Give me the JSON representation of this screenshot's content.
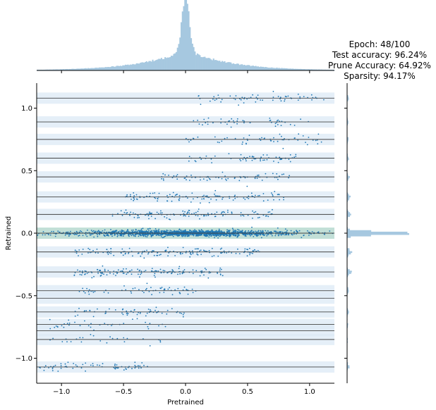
{
  "annotation": {
    "epoch": "Epoch: 48/100",
    "test_accuracy": "Test accuracy: 96.24%",
    "prune_accuracy": "Prune Accuracy: 64.92%",
    "sparsity": "Sparsity: 94.17%"
  },
  "colors": {
    "points": "#1f77b4",
    "hist": "#a6c8e0",
    "band": "#dce9f5",
    "zero_band": "#b7d9d0",
    "line": "#444444"
  },
  "chart_data": {
    "type": "scatter",
    "xlabel": "Pretrained",
    "ylabel": "Retrained",
    "xlim": [
      -1.2,
      1.2
    ],
    "ylim": [
      -1.2,
      1.2
    ],
    "x_ticks": [
      -1.0,
      -0.5,
      0.0,
      0.5,
      1.0
    ],
    "x_tick_labels": [
      "−1.0",
      "−0.5",
      "0.0",
      "0.5",
      "1.0"
    ],
    "y_ticks": [
      -1.0,
      -0.5,
      0.0,
      0.5,
      1.0
    ],
    "y_tick_labels": [
      "−1.0",
      "−0.5",
      "0.0",
      "0.5",
      "1.0"
    ],
    "grid": false,
    "legend": "none",
    "quantization_levels": [
      -1.07,
      -0.85,
      -0.78,
      -0.73,
      -0.63,
      -0.52,
      -0.46,
      -0.31,
      -0.15,
      0.0,
      0.15,
      0.29,
      0.45,
      0.6,
      0.75,
      0.89,
      1.08
    ],
    "clusters": [
      {
        "level": 1.08,
        "x_range": [
          0.1,
          1.15
        ],
        "count": 60
      },
      {
        "level": 0.89,
        "x_range": [
          0.0,
          1.0
        ],
        "count": 45
      },
      {
        "level": 0.75,
        "x_range": [
          0.0,
          1.1
        ],
        "count": 55
      },
      {
        "level": 0.6,
        "x_range": [
          -0.1,
          0.9
        ],
        "count": 55
      },
      {
        "level": 0.45,
        "x_range": [
          -0.2,
          0.85
        ],
        "count": 70
      },
      {
        "level": 0.29,
        "x_range": [
          -0.5,
          0.8
        ],
        "count": 110
      },
      {
        "level": 0.15,
        "x_range": [
          -0.6,
          0.7
        ],
        "count": 120
      },
      {
        "level": 0.0,
        "x_range": [
          -1.2,
          1.2
        ],
        "count": 1600
      },
      {
        "level": -0.15,
        "x_range": [
          -0.9,
          0.6
        ],
        "count": 150
      },
      {
        "level": -0.31,
        "x_range": [
          -0.9,
          0.3
        ],
        "count": 140
      },
      {
        "level": -0.46,
        "x_range": [
          -0.9,
          0.1
        ],
        "count": 60
      },
      {
        "level": -0.63,
        "x_range": [
          -0.9,
          0.0
        ],
        "count": 60
      },
      {
        "level": -0.73,
        "x_range": [
          -1.1,
          -0.1
        ],
        "count": 35
      },
      {
        "level": -0.85,
        "x_range": [
          -1.1,
          -0.2
        ],
        "count": 25
      },
      {
        "level": -1.07,
        "x_range": [
          -1.2,
          -0.3
        ],
        "count": 70
      }
    ],
    "marginal_x": {
      "type": "histogram",
      "center": 0.0,
      "peak_width": 0.04,
      "spread": 0.35
    },
    "marginal_y": {
      "type": "histogram",
      "peak_level": 0.0
    }
  }
}
